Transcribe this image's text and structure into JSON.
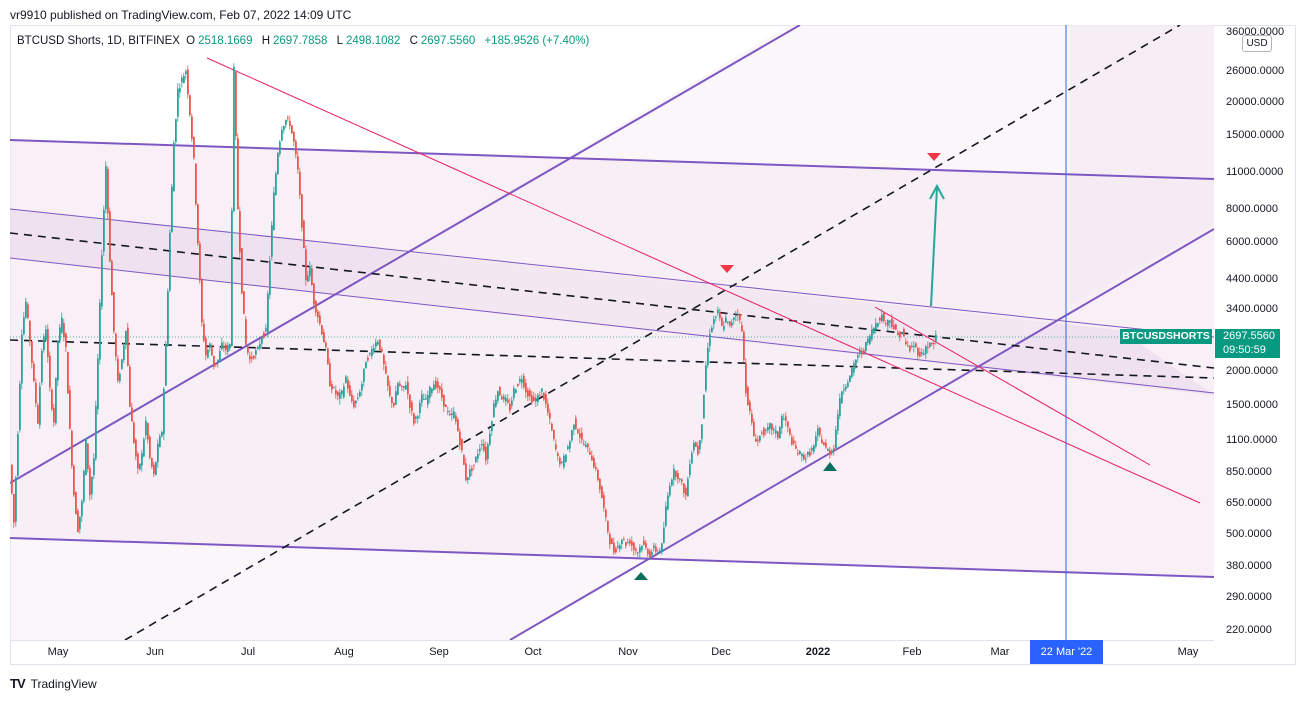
{
  "publish_info": "vr9910 published on TradingView.com, Feb 07, 2022 14:09 UTC",
  "ohlc": {
    "symbol": "BTCUSD Shorts, 1D, BITFINEX",
    "o_label": "O",
    "o": "2518.1669",
    "h_label": "H",
    "h": "2697.7858",
    "l_label": "L",
    "l": "2498.1082",
    "c_label": "C",
    "c": "2697.5560",
    "change": "+185.9526 (+7.40%)"
  },
  "currency_button": "USD",
  "price_axis": {
    "ticks": [
      "36000.0000",
      "26000.0000",
      "20000.0000",
      "15000.0000",
      "11000.0000",
      "8000.0000",
      "6000.0000",
      "4400.0000",
      "3400.0000",
      "2000.0000",
      "1500.0000",
      "1100.0000",
      "850.0000",
      "650.0000",
      "500.0000",
      "380.0000",
      "290.0000",
      "220.0000"
    ],
    "scale": "log"
  },
  "time_axis": {
    "ticks": [
      "May",
      "Jun",
      "Jul",
      "Aug",
      "Sep",
      "Oct",
      "Nov",
      "Dec",
      "2022",
      "Feb",
      "Mar",
      "May"
    ],
    "bold_tick": "2022"
  },
  "last_price": {
    "symbol_label": "BTCUSDSHORTS",
    "price": "2697.5560",
    "countdown": "09:50:59"
  },
  "crosshair_date": "22 Mar '22",
  "branding": "TradingView",
  "colors": {
    "up": "#26a69a",
    "down": "#ef5350",
    "channel": "#7e57c2",
    "trendline_red": "#e91e63",
    "marker_up": "#0b6e5f",
    "marker_down": "#f23645",
    "arrow": "#26a69a",
    "crosshair": "#2962ff",
    "fill": "#f3e5f5"
  },
  "chart_data": {
    "type": "candlestick",
    "scale": "log",
    "x_range": [
      "2021-04",
      "2022-05"
    ],
    "y_range": [
      200,
      36000
    ],
    "close_path": [
      [
        0,
        900
      ],
      [
        4,
        550
      ],
      [
        8,
        1200
      ],
      [
        12,
        2800
      ],
      [
        16,
        3600
      ],
      [
        20,
        2600
      ],
      [
        24,
        1800
      ],
      [
        28,
        1300
      ],
      [
        32,
        2400
      ],
      [
        36,
        2900
      ],
      [
        40,
        1700
      ],
      [
        44,
        1300
      ],
      [
        48,
        2600
      ],
      [
        52,
        3100
      ],
      [
        56,
        2400
      ],
      [
        60,
        1200
      ],
      [
        64,
        700
      ],
      [
        68,
        520
      ],
      [
        72,
        650
      ],
      [
        76,
        1100
      ],
      [
        80,
        700
      ],
      [
        84,
        950
      ],
      [
        88,
        2200
      ],
      [
        92,
        5500
      ],
      [
        96,
        11500
      ],
      [
        100,
        5200
      ],
      [
        104,
        2800
      ],
      [
        108,
        1800
      ],
      [
        112,
        2200
      ],
      [
        116,
        2900
      ],
      [
        120,
        1500
      ],
      [
        124,
        1100
      ],
      [
        128,
        850
      ],
      [
        132,
        980
      ],
      [
        136,
        1300
      ],
      [
        140,
        950
      ],
      [
        144,
        820
      ],
      [
        148,
        1050
      ],
      [
        152,
        1200
      ],
      [
        156,
        2500
      ],
      [
        160,
        6500
      ],
      [
        164,
        14000
      ],
      [
        168,
        22000
      ],
      [
        172,
        24000
      ],
      [
        176,
        26000
      ],
      [
        180,
        18000
      ],
      [
        184,
        12000
      ],
      [
        188,
        6000
      ],
      [
        192,
        3000
      ],
      [
        196,
        2300
      ],
      [
        200,
        2500
      ],
      [
        204,
        2100
      ],
      [
        208,
        2200
      ],
      [
        212,
        2500
      ],
      [
        216,
        2400
      ],
      [
        220,
        2500
      ],
      [
        224,
        26000
      ],
      [
        228,
        8000
      ],
      [
        232,
        4000
      ],
      [
        236,
        2500
      ],
      [
        240,
        2200
      ],
      [
        244,
        2300
      ],
      [
        248,
        2400
      ],
      [
        252,
        2700
      ],
      [
        256,
        2800
      ],
      [
        260,
        5200
      ],
      [
        264,
        9000
      ],
      [
        268,
        13000
      ],
      [
        272,
        16000
      ],
      [
        276,
        17000
      ],
      [
        280,
        16500
      ],
      [
        284,
        14000
      ],
      [
        288,
        11000
      ],
      [
        292,
        7000
      ],
      [
        296,
        4400
      ],
      [
        300,
        4800
      ],
      [
        304,
        3600
      ],
      [
        308,
        3200
      ],
      [
        312,
        2800
      ],
      [
        316,
        2400
      ],
      [
        320,
        1800
      ],
      [
        324,
        1700
      ],
      [
        328,
        1600
      ],
      [
        332,
        1650
      ],
      [
        336,
        1900
      ],
      [
        340,
        1600
      ],
      [
        344,
        1500
      ],
      [
        348,
        1600
      ],
      [
        352,
        1800
      ],
      [
        356,
        2200
      ],
      [
        360,
        2300
      ],
      [
        364,
        2500
      ],
      [
        368,
        2600
      ],
      [
        372,
        2300
      ],
      [
        376,
        1900
      ],
      [
        380,
        1600
      ],
      [
        384,
        1500
      ],
      [
        388,
        1800
      ],
      [
        392,
        1700
      ],
      [
        396,
        1800
      ],
      [
        400,
        1500
      ],
      [
        404,
        1300
      ],
      [
        408,
        1400
      ],
      [
        412,
        1600
      ],
      [
        416,
        1550
      ],
      [
        420,
        1700
      ],
      [
        424,
        1800
      ],
      [
        428,
        1750
      ],
      [
        432,
        1600
      ],
      [
        436,
        1450
      ],
      [
        440,
        1350
      ],
      [
        444,
        1400
      ],
      [
        448,
        1200
      ],
      [
        452,
        1000
      ],
      [
        456,
        800
      ],
      [
        460,
        850
      ],
      [
        464,
        900
      ],
      [
        468,
        1000
      ],
      [
        472,
        1100
      ],
      [
        476,
        950
      ],
      [
        480,
        1200
      ],
      [
        484,
        1500
      ],
      [
        488,
        1700
      ],
      [
        492,
        1600
      ],
      [
        496,
        1550
      ],
      [
        500,
        1450
      ],
      [
        504,
        1700
      ],
      [
        508,
        1800
      ],
      [
        512,
        1900
      ],
      [
        516,
        1700
      ],
      [
        520,
        1600
      ],
      [
        524,
        1550
      ],
      [
        528,
        1600
      ],
      [
        532,
        1700
      ],
      [
        536,
        1500
      ],
      [
        540,
        1300
      ],
      [
        544,
        1100
      ],
      [
        548,
        950
      ],
      [
        552,
        900
      ],
      [
        556,
        1000
      ],
      [
        560,
        1100
      ],
      [
        564,
        1300
      ],
      [
        568,
        1200
      ],
      [
        572,
        1100
      ],
      [
        576,
        1050
      ],
      [
        580,
        1000
      ],
      [
        584,
        900
      ],
      [
        588,
        800
      ],
      [
        592,
        680
      ],
      [
        596,
        560
      ],
      [
        600,
        470
      ],
      [
        604,
        430
      ],
      [
        608,
        450
      ],
      [
        612,
        480
      ],
      [
        616,
        460
      ],
      [
        620,
        470
      ],
      [
        624,
        440
      ],
      [
        628,
        430
      ],
      [
        632,
        460
      ],
      [
        636,
        440
      ],
      [
        640,
        420
      ],
      [
        644,
        440
      ],
      [
        648,
        430
      ],
      [
        652,
        450
      ],
      [
        656,
        620
      ],
      [
        660,
        770
      ],
      [
        664,
        850
      ],
      [
        668,
        820
      ],
      [
        672,
        760
      ],
      [
        676,
        690
      ],
      [
        680,
        930
      ],
      [
        684,
        1100
      ],
      [
        688,
        1000
      ],
      [
        692,
        1300
      ],
      [
        696,
        2100
      ],
      [
        700,
        2800
      ],
      [
        704,
        3100
      ],
      [
        708,
        3300
      ],
      [
        712,
        2900
      ],
      [
        716,
        3100
      ],
      [
        720,
        2900
      ],
      [
        724,
        3200
      ],
      [
        728,
        3300
      ],
      [
        732,
        2800
      ],
      [
        736,
        1700
      ],
      [
        740,
        1400
      ],
      [
        744,
        1150
      ],
      [
        748,
        1100
      ],
      [
        752,
        1200
      ],
      [
        756,
        1180
      ],
      [
        760,
        1250
      ],
      [
        764,
        1200
      ],
      [
        768,
        1150
      ],
      [
        772,
        1350
      ],
      [
        776,
        1300
      ],
      [
        780,
        1150
      ],
      [
        784,
        1050
      ],
      [
        788,
        1000
      ],
      [
        792,
        970
      ],
      [
        796,
        960
      ],
      [
        800,
        1000
      ],
      [
        804,
        1050
      ],
      [
        808,
        1200
      ],
      [
        812,
        1100
      ],
      [
        816,
        1030
      ],
      [
        820,
        1000
      ],
      [
        824,
        1050
      ],
      [
        828,
        1400
      ],
      [
        832,
        1700
      ],
      [
        836,
        1800
      ],
      [
        840,
        1900
      ],
      [
        844,
        2100
      ],
      [
        848,
        2300
      ],
      [
        852,
        2350
      ],
      [
        856,
        2500
      ],
      [
        860,
        2700
      ],
      [
        864,
        2900
      ],
      [
        868,
        3100
      ],
      [
        872,
        3200
      ],
      [
        876,
        3000
      ],
      [
        880,
        3100
      ],
      [
        884,
        2900
      ],
      [
        888,
        2700
      ],
      [
        892,
        2800
      ],
      [
        896,
        2500
      ],
      [
        900,
        2400
      ],
      [
        904,
        2500
      ],
      [
        908,
        2350
      ],
      [
        912,
        2300
      ],
      [
        916,
        2450
      ],
      [
        920,
        2500
      ],
      [
        924,
        2520
      ],
      [
        926,
        2697.556
      ]
    ],
    "markers": [
      {
        "type": "up-triangle",
        "date": "2021-11-08",
        "price": 370
      },
      {
        "type": "up-triangle",
        "date": "2021-12-28",
        "price": 870
      },
      {
        "type": "down-triangle",
        "date": "2021-11-30",
        "price": 4500
      },
      {
        "type": "down-triangle",
        "date": "2022-02-10",
        "price": 12500
      }
    ],
    "projection_arrow": {
      "from_price": 3400,
      "to_price": 10000
    }
  }
}
